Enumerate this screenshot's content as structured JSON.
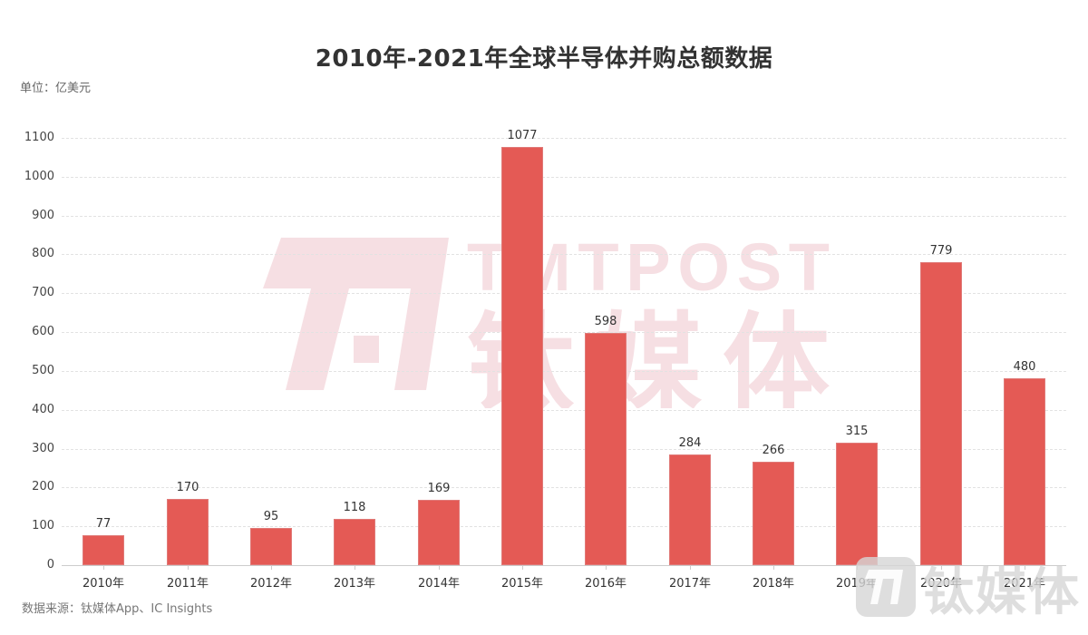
{
  "title": "2010年-2021年全球半导体并购总额数据",
  "unit_label": "单位：亿美元",
  "source_label": "数据来源：钛媒体App、IC Insights",
  "watermark": {
    "brand_en": "TMTPOST",
    "brand_cn": "钛媒体",
    "color": "#f6dfe3",
    "corner_color": "#d9d9d9"
  },
  "colors": {
    "bar": "#e45a55",
    "grid": "#e2e2e2",
    "axis": "#cccccc",
    "text": "#333333"
  },
  "chart_data": {
    "type": "bar",
    "title": "2010年-2021年全球半导体并购总额数据",
    "xlabel": "",
    "ylabel": "单位：亿美元",
    "categories": [
      "2010年",
      "2011年",
      "2012年",
      "2013年",
      "2014年",
      "2015年",
      "2016年",
      "2017年",
      "2018年",
      "2019年",
      "2020年",
      "2021年"
    ],
    "values": [
      77,
      170,
      95,
      118,
      169,
      1077,
      598,
      284,
      266,
      315,
      779,
      480
    ],
    "yticks": [
      0,
      100,
      200,
      300,
      400,
      500,
      600,
      700,
      800,
      900,
      1000,
      1100
    ],
    "ylim": [
      0,
      1100
    ],
    "grid": true,
    "legend": "none",
    "data_labels": true
  }
}
